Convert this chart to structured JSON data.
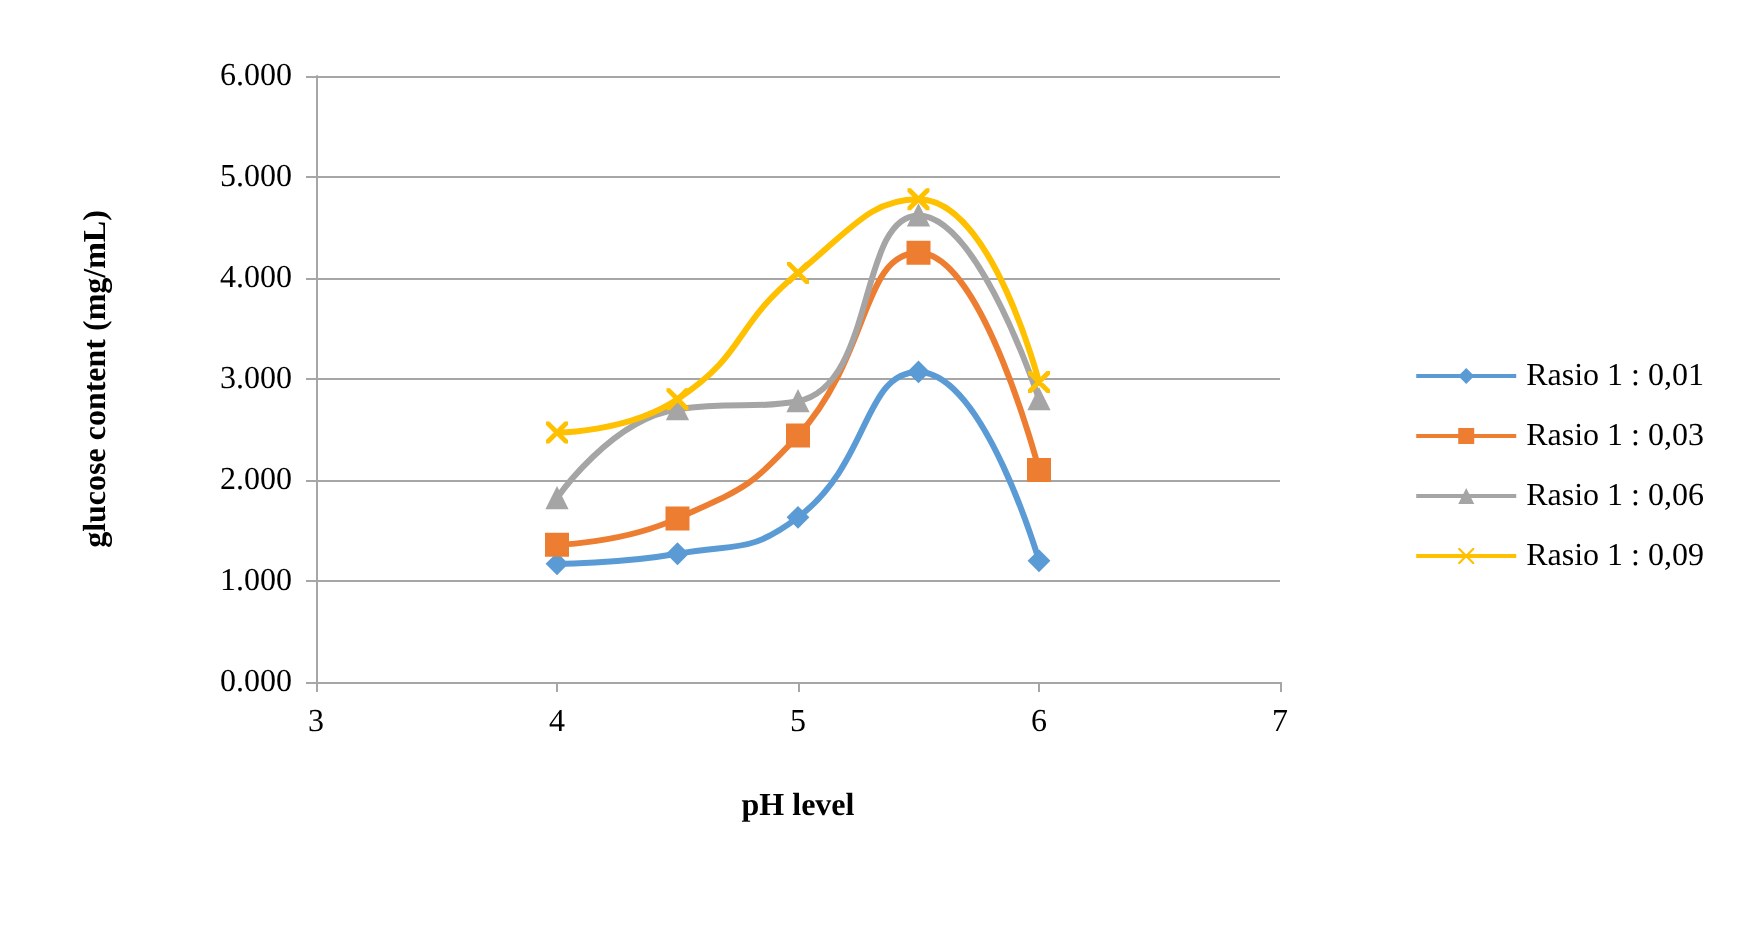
{
  "chart_data": {
    "type": "line",
    "xlabel": "pH level",
    "ylabel": "glucose content (mg/mL)",
    "x": [
      4,
      4.5,
      5,
      5.5,
      6
    ],
    "xlim": [
      3,
      7
    ],
    "xticks": [
      3,
      4,
      5,
      6,
      7
    ],
    "ylim": [
      0,
      6000
    ],
    "yticks": [
      {
        "value": 0,
        "label": "0.000"
      },
      {
        "value": 1000,
        "label": "1.000"
      },
      {
        "value": 2000,
        "label": "2.000"
      },
      {
        "value": 3000,
        "label": "3.000"
      },
      {
        "value": 4000,
        "label": "4.000"
      },
      {
        "value": 5000,
        "label": "5.000"
      },
      {
        "value": 6000,
        "label": "6.000"
      }
    ],
    "grid": "y",
    "legend": "right",
    "line_style": "solid",
    "series": [
      {
        "name": "Rasio 1 : 0,01",
        "color": "#5b9bd5",
        "marker": "diamond",
        "values": [
          1170,
          1270,
          1630,
          3070,
          1200
        ]
      },
      {
        "name": "Rasio 1 : 0,03",
        "color": "#ed7d31",
        "marker": "square",
        "values": [
          1360,
          1620,
          2440,
          4250,
          2100
        ]
      },
      {
        "name": "Rasio 1 : 0,06",
        "color": "#a5a5a5",
        "marker": "triangle",
        "values": [
          1820,
          2700,
          2780,
          4620,
          2800
        ]
      },
      {
        "name": "Rasio 1 : 0,09",
        "color": "#ffc000",
        "marker": "cross",
        "values": [
          2470,
          2800,
          4050,
          4780,
          2970
        ]
      }
    ]
  }
}
